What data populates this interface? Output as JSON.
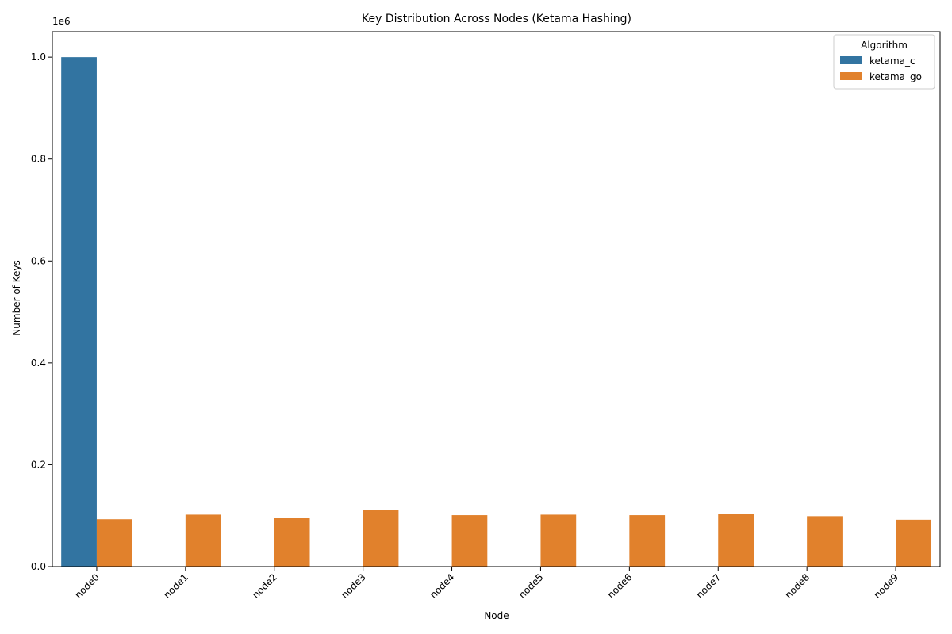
{
  "chart_data": {
    "type": "bar",
    "title": "Key Distribution Across Nodes (Ketama Hashing)",
    "xlabel": "Node",
    "ylabel": "Number of Keys",
    "offset_label": "1e6",
    "categories": [
      "node0",
      "node1",
      "node2",
      "node3",
      "node4",
      "node5",
      "node6",
      "node7",
      "node8",
      "node9"
    ],
    "ylim": [
      0,
      1050000
    ],
    "yticks": [
      0,
      200000,
      400000,
      600000,
      800000,
      1000000
    ],
    "ytick_labels": [
      "0.0",
      "0.2",
      "0.4",
      "0.6",
      "0.8",
      "1.0"
    ],
    "grid": false,
    "legend": {
      "title": "Algorithm",
      "placement": "top-right"
    },
    "series": [
      {
        "name": "ketama_c",
        "color": "#3274a1",
        "values": [
          1000000,
          0,
          0,
          0,
          0,
          0,
          0,
          0,
          0,
          0
        ]
      },
      {
        "name": "ketama_go",
        "color": "#e1812c",
        "values": [
          93000,
          102000,
          96000,
          111000,
          101000,
          102000,
          101000,
          104000,
          99000,
          92000
        ]
      }
    ]
  }
}
